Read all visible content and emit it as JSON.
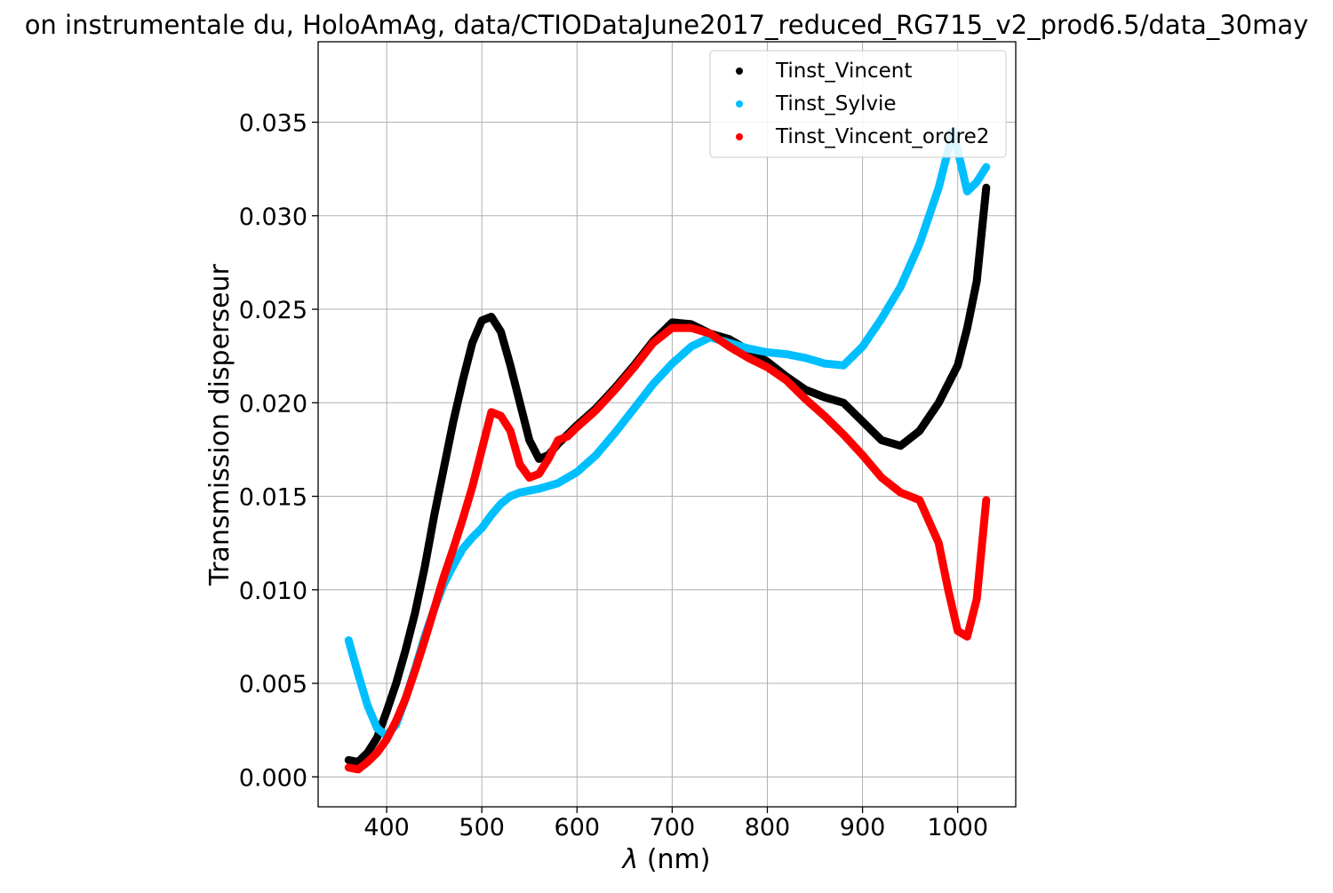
{
  "chart_data": {
    "type": "scatter",
    "title": "on instrumentale du, HoloAmAg, data/CTIODataJune2017_reduced_RG715_v2_prod6.5/data_30may",
    "xlabel_symbol": "λ",
    "xlabel_unit": "(nm)",
    "ylabel": "Transmission disperseur",
    "xlim": [
      328,
      1061
    ],
    "ylim": [
      -0.0016,
      0.0393
    ],
    "xticks": [
      400,
      500,
      600,
      700,
      800,
      900,
      1000
    ],
    "xtick_labels": [
      "400",
      "500",
      "600",
      "700",
      "800",
      "900",
      "1000"
    ],
    "yticks": [
      0.0,
      0.005,
      0.01,
      0.015,
      0.02,
      0.025,
      0.03,
      0.035
    ],
    "ytick_labels": [
      "0.000",
      "0.005",
      "0.010",
      "0.015",
      "0.020",
      "0.025",
      "0.030",
      "0.035"
    ],
    "grid": true,
    "legend_position": "top-right",
    "series": [
      {
        "name": "Tinst_Vincent",
        "color": "#000000",
        "points": [
          [
            360,
            0.0009
          ],
          [
            370,
            0.0008
          ],
          [
            380,
            0.0013
          ],
          [
            390,
            0.0021
          ],
          [
            400,
            0.0035
          ],
          [
            410,
            0.005
          ],
          [
            420,
            0.0068
          ],
          [
            430,
            0.0088
          ],
          [
            440,
            0.0112
          ],
          [
            450,
            0.014
          ],
          [
            460,
            0.0165
          ],
          [
            470,
            0.019
          ],
          [
            480,
            0.0212
          ],
          [
            490,
            0.0232
          ],
          [
            500,
            0.0244
          ],
          [
            510,
            0.0246
          ],
          [
            520,
            0.0238
          ],
          [
            530,
            0.022
          ],
          [
            540,
            0.02
          ],
          [
            550,
            0.018
          ],
          [
            560,
            0.017
          ],
          [
            570,
            0.0172
          ],
          [
            580,
            0.0178
          ],
          [
            590,
            0.0183
          ],
          [
            600,
            0.0188
          ],
          [
            620,
            0.0197
          ],
          [
            640,
            0.0208
          ],
          [
            660,
            0.022
          ],
          [
            680,
            0.0233
          ],
          [
            700,
            0.0243
          ],
          [
            720,
            0.0242
          ],
          [
            740,
            0.0237
          ],
          [
            760,
            0.0234
          ],
          [
            780,
            0.0228
          ],
          [
            800,
            0.0222
          ],
          [
            820,
            0.0214
          ],
          [
            840,
            0.0207
          ],
          [
            860,
            0.0203
          ],
          [
            880,
            0.02
          ],
          [
            900,
            0.019
          ],
          [
            920,
            0.018
          ],
          [
            940,
            0.0177
          ],
          [
            960,
            0.0185
          ],
          [
            980,
            0.02
          ],
          [
            1000,
            0.022
          ],
          [
            1010,
            0.024
          ],
          [
            1020,
            0.0265
          ],
          [
            1030,
            0.0315
          ]
        ]
      },
      {
        "name": "Tinst_Sylvie",
        "color": "#00bfff",
        "points": [
          [
            360,
            0.0073
          ],
          [
            370,
            0.0055
          ],
          [
            380,
            0.0038
          ],
          [
            390,
            0.0026
          ],
          [
            400,
            0.0022
          ],
          [
            410,
            0.0028
          ],
          [
            420,
            0.0042
          ],
          [
            430,
            0.0058
          ],
          [
            440,
            0.0075
          ],
          [
            450,
            0.009
          ],
          [
            460,
            0.0103
          ],
          [
            470,
            0.0113
          ],
          [
            480,
            0.0122
          ],
          [
            490,
            0.0128
          ],
          [
            500,
            0.0133
          ],
          [
            510,
            0.014
          ],
          [
            520,
            0.0146
          ],
          [
            530,
            0.015
          ],
          [
            540,
            0.0152
          ],
          [
            550,
            0.0153
          ],
          [
            560,
            0.0154
          ],
          [
            580,
            0.0157
          ],
          [
            600,
            0.0163
          ],
          [
            620,
            0.0172
          ],
          [
            640,
            0.0184
          ],
          [
            660,
            0.0197
          ],
          [
            680,
            0.021
          ],
          [
            700,
            0.0221
          ],
          [
            720,
            0.023
          ],
          [
            740,
            0.0235
          ],
          [
            760,
            0.0232
          ],
          [
            780,
            0.0229
          ],
          [
            800,
            0.0227
          ],
          [
            820,
            0.0226
          ],
          [
            840,
            0.0224
          ],
          [
            860,
            0.0221
          ],
          [
            880,
            0.022
          ],
          [
            900,
            0.023
          ],
          [
            920,
            0.0245
          ],
          [
            940,
            0.0262
          ],
          [
            960,
            0.0285
          ],
          [
            980,
            0.0315
          ],
          [
            995,
            0.0345
          ],
          [
            1000,
            0.0335
          ],
          [
            1010,
            0.0313
          ],
          [
            1020,
            0.0318
          ],
          [
            1030,
            0.0326
          ]
        ]
      },
      {
        "name": "Tinst_Vincent_ordre2",
        "color": "#ff0000",
        "points": [
          [
            360,
            0.0005
          ],
          [
            370,
            0.0004
          ],
          [
            380,
            0.0008
          ],
          [
            390,
            0.0013
          ],
          [
            400,
            0.002
          ],
          [
            410,
            0.003
          ],
          [
            420,
            0.0042
          ],
          [
            430,
            0.0057
          ],
          [
            440,
            0.0073
          ],
          [
            450,
            0.009
          ],
          [
            460,
            0.0107
          ],
          [
            470,
            0.0122
          ],
          [
            480,
            0.0138
          ],
          [
            490,
            0.0155
          ],
          [
            500,
            0.0175
          ],
          [
            510,
            0.0195
          ],
          [
            520,
            0.0193
          ],
          [
            530,
            0.0185
          ],
          [
            540,
            0.0167
          ],
          [
            550,
            0.016
          ],
          [
            560,
            0.0162
          ],
          [
            570,
            0.017
          ],
          [
            580,
            0.018
          ],
          [
            590,
            0.0182
          ],
          [
            600,
            0.0187
          ],
          [
            620,
            0.0196
          ],
          [
            640,
            0.0207
          ],
          [
            660,
            0.0219
          ],
          [
            680,
            0.0232
          ],
          [
            700,
            0.024
          ],
          [
            720,
            0.024
          ],
          [
            740,
            0.0237
          ],
          [
            760,
            0.023
          ],
          [
            780,
            0.0224
          ],
          [
            800,
            0.0219
          ],
          [
            820,
            0.0212
          ],
          [
            840,
            0.0202
          ],
          [
            860,
            0.0193
          ],
          [
            880,
            0.0183
          ],
          [
            900,
            0.0172
          ],
          [
            920,
            0.016
          ],
          [
            940,
            0.0152
          ],
          [
            960,
            0.0148
          ],
          [
            980,
            0.0125
          ],
          [
            990,
            0.01
          ],
          [
            1000,
            0.0078
          ],
          [
            1010,
            0.0075
          ],
          [
            1020,
            0.0095
          ],
          [
            1030,
            0.0148
          ]
        ]
      }
    ]
  }
}
